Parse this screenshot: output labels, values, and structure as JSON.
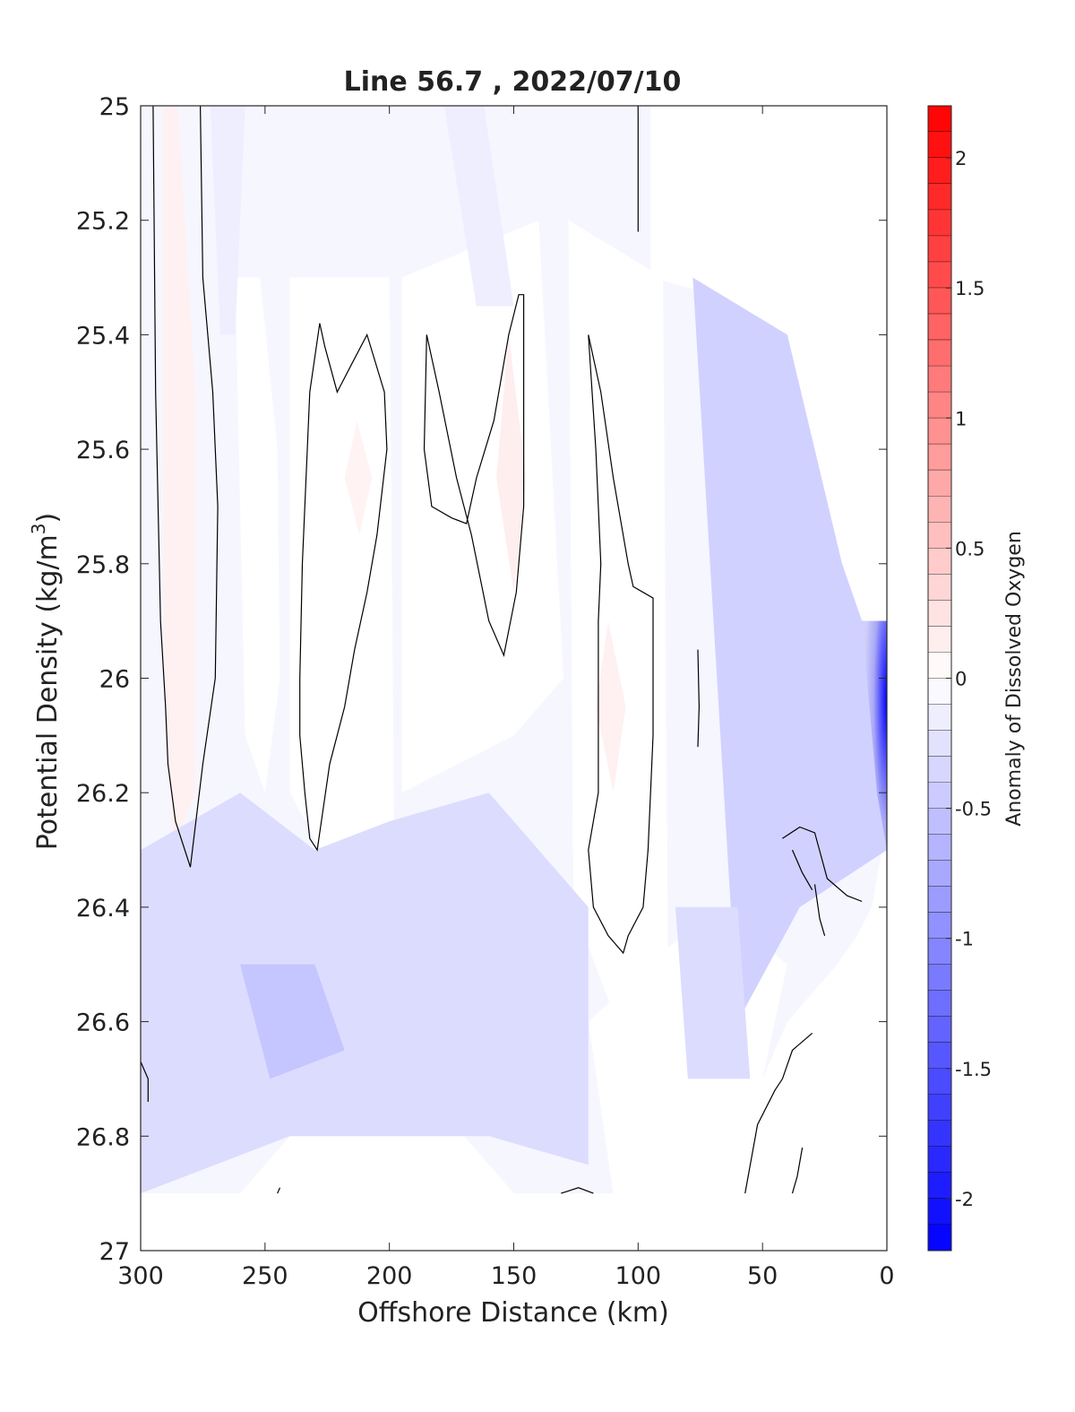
{
  "chart_data": {
    "type": "heatmap",
    "subtype": "filled-contour",
    "title": "Line 56.7 , 2022/07/10",
    "xlabel": "Offshore Distance (km)",
    "ylabel_main": "Potential Density (kg/m",
    "ylabel_sup": "3",
    "ylabel_close": ")",
    "xlim": [
      300,
      0
    ],
    "x_reversed": true,
    "ylim": [
      27,
      25
    ],
    "y_reversed": true,
    "x_ticks": [
      300,
      250,
      200,
      150,
      100,
      50,
      0
    ],
    "x_tick_labels": [
      "300",
      "250",
      "200",
      "150",
      "100",
      "50",
      "0"
    ],
    "y_ticks": [
      25,
      25.2,
      25.4,
      25.6,
      25.8,
      26,
      26.2,
      26.4,
      26.6,
      26.8,
      27
    ],
    "y_tick_labels": [
      "25",
      "25.2",
      "25.4",
      "25.6",
      "25.8",
      "26",
      "26.2",
      "26.4",
      "26.6",
      "26.8",
      "27"
    ],
    "grid": false,
    "colorbar": {
      "label": "Anomaly of Dissolved Oxygen",
      "range": [
        -2.2,
        2.2
      ],
      "step": 0.1,
      "ticks": [
        2,
        1.5,
        1,
        0.5,
        0,
        -0.5,
        -1,
        -1.5,
        -2
      ],
      "tick_labels": [
        "2",
        "1.5",
        "1",
        "0.5",
        "0",
        "-0.5",
        "-1",
        "-1.5",
        "-2"
      ],
      "colormap": "blue-white-red",
      "color_negative": "#0000ff",
      "color_zero": "#ffffff",
      "color_positive": "#ff0000"
    },
    "zero_contour_color": "#000000",
    "anomaly_regions": [
      {
        "name": "western positive core",
        "x": [
          285,
          278,
          278,
          287,
          291,
          291
        ],
        "y": [
          25.0,
          25.5,
          26.2,
          26.3,
          26.0,
          25.0
        ],
        "value": 0.12
      },
      {
        "name": "positive lens 150 km",
        "x": [
          152,
          145,
          150,
          157
        ],
        "y": [
          25.4,
          25.65,
          25.85,
          25.65
        ],
        "value": 0.15
      },
      {
        "name": "positive lens 110 km",
        "x": [
          112,
          105,
          110,
          117
        ],
        "y": [
          25.9,
          26.05,
          26.2,
          26.05
        ],
        "value": 0.12
      },
      {
        "name": "positive lens 215 km",
        "x": [
          213,
          207,
          212,
          218
        ],
        "y": [
          25.55,
          25.65,
          25.75,
          25.65
        ],
        "value": 0.1
      },
      {
        "name": "upper negative band 265 km",
        "x": [
          272,
          258,
          262,
          268
        ],
        "y": [
          25.0,
          25.0,
          25.4,
          25.4
        ],
        "value": -0.15
      },
      {
        "name": "upper negative band 160 km",
        "x": [
          178,
          162,
          150,
          165
        ],
        "y": [
          25.0,
          25.0,
          25.35,
          25.35
        ],
        "value": -0.15
      },
      {
        "name": "coastal negative tongue",
        "x": [
          78,
          40,
          18,
          10,
          0,
          0,
          35,
          60
        ],
        "y": [
          25.3,
          25.4,
          25.8,
          25.9,
          25.9,
          26.3,
          26.4,
          26.6
        ],
        "value": -0.4
      },
      {
        "name": "coastal minimum",
        "x": [
          10,
          0,
          0,
          4
        ],
        "y": [
          25.9,
          25.9,
          26.3,
          26.2
        ],
        "value": -1.6
      },
      {
        "name": "deep negative band",
        "x": [
          300,
          260,
          230,
          200,
          160,
          120,
          120,
          160,
          200,
          240,
          300
        ],
        "y": [
          26.3,
          26.2,
          26.3,
          26.25,
          26.2,
          26.4,
          26.85,
          26.8,
          26.8,
          26.8,
          26.9
        ],
        "value": -0.3
      },
      {
        "name": "deep minimum 235 km",
        "x": [
          260,
          230,
          218,
          248
        ],
        "y": [
          26.5,
          26.5,
          26.65,
          26.7
        ],
        "value": -0.5
      },
      {
        "name": "deep negative 75 km",
        "x": [
          85,
          60,
          55,
          80
        ],
        "y": [
          26.4,
          26.4,
          26.7,
          26.7
        ],
        "value": -0.3
      }
    ],
    "zero_contours": [
      {
        "x": [
          295,
          294,
          292,
          290,
          289,
          286,
          280,
          275,
          270,
          269,
          271,
          275,
          276
        ],
        "y": [
          25.0,
          25.5,
          25.9,
          26.05,
          26.15,
          26.25,
          26.33,
          26.15,
          26.0,
          25.7,
          25.5,
          25.3,
          25.0
        ]
      },
      {
        "x": [
          228,
          232,
          235,
          236,
          236,
          234,
          232,
          229,
          224,
          218,
          214,
          209,
          205,
          201,
          202,
          209,
          215,
          221,
          226,
          228
        ],
        "y": [
          25.38,
          25.5,
          25.8,
          26.0,
          26.1,
          26.2,
          26.28,
          26.3,
          26.15,
          26.05,
          25.95,
          25.85,
          25.75,
          25.6,
          25.5,
          25.4,
          25.45,
          25.5,
          25.42,
          25.38
        ]
      },
      {
        "x": [
          185,
          186,
          183,
          175,
          169,
          165,
          158,
          152,
          148,
          146,
          146,
          149,
          154,
          160,
          167,
          173,
          180,
          185
        ],
        "y": [
          25.4,
          25.6,
          25.7,
          25.72,
          25.73,
          25.65,
          25.55,
          25.4,
          25.33,
          25.33,
          25.7,
          25.85,
          25.96,
          25.9,
          25.75,
          25.65,
          25.5,
          25.4
        ]
      },
      {
        "x": [
          120,
          117,
          115,
          116,
          116,
          120,
          118,
          112,
          106,
          104,
          98,
          96,
          94,
          94,
          98,
          102,
          104,
          110,
          115,
          120
        ],
        "y": [
          25.4,
          25.6,
          25.8,
          25.9,
          26.2,
          26.3,
          26.4,
          26.45,
          26.48,
          26.45,
          26.4,
          26.3,
          26.1,
          25.86,
          25.85,
          25.84,
          25.8,
          25.65,
          25.5,
          25.4
        ]
      },
      {
        "x": [
          100,
          100,
          100
        ],
        "y": [
          25.0,
          25.1,
          25.22
        ]
      },
      {
        "x": [
          76,
          75.5,
          76
        ],
        "y": [
          25.95,
          26.05,
          26.12
        ]
      },
      {
        "x": [
          42,
          35,
          29,
          24,
          16,
          10
        ],
        "y": [
          26.28,
          26.26,
          26.27,
          26.35,
          26.38,
          26.39
        ]
      },
      {
        "x": [
          38,
          34,
          30
        ],
        "y": [
          26.3,
          26.34,
          26.37
        ]
      },
      {
        "x": [
          29,
          27,
          25
        ],
        "y": [
          26.36,
          26.42,
          26.45
        ]
      },
      {
        "x": [
          57,
          52,
          45,
          42,
          38,
          30
        ],
        "y": [
          26.9,
          26.78,
          26.72,
          26.7,
          26.65,
          26.62
        ]
      },
      {
        "x": [
          38,
          36,
          34
        ],
        "y": [
          26.9,
          26.87,
          26.82
        ]
      },
      {
        "x": [
          300,
          297,
          297
        ],
        "y": [
          26.67,
          26.7,
          26.74
        ]
      },
      {
        "x": [
          131,
          124,
          118
        ],
        "y": [
          26.9,
          26.89,
          26.9
        ]
      },
      {
        "x": [
          245,
          244
        ],
        "y": [
          26.9,
          26.89
        ]
      }
    ]
  }
}
